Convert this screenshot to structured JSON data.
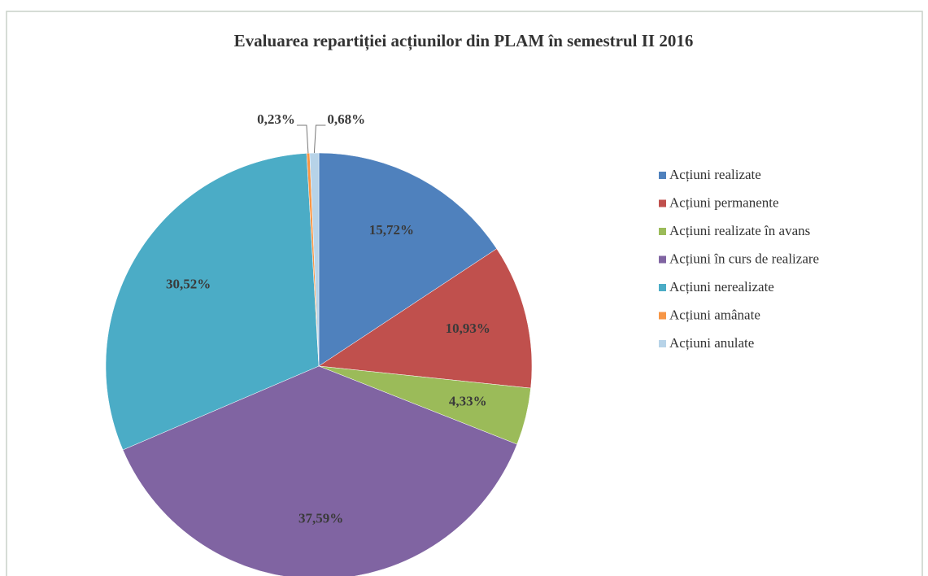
{
  "chart_data": {
    "type": "pie",
    "title": "Evaluarea repartiției acțiunilor din PLAM în semestrul II 2016",
    "categories": [
      "Acțiuni realizate",
      "Acțiuni permanente",
      "Acțiuni realizate în avans",
      "Acțiuni în curs de realizare",
      "Acțiuni nerealizate",
      "Acțiuni amânate",
      "Acțiuni anulate"
    ],
    "values": [
      15.72,
      10.93,
      4.33,
      37.59,
      30.52,
      0.23,
      0.68
    ],
    "value_labels": [
      "15,72%",
      "10,93%",
      "4,33%",
      "37,59%",
      "30,52%",
      "0,23%",
      "0,68%"
    ],
    "colors": [
      "#4f81bd",
      "#c0504d",
      "#9bbb59",
      "#8064a2",
      "#4bacc6",
      "#f79646",
      "#b7d3e8"
    ],
    "legend": "right"
  }
}
